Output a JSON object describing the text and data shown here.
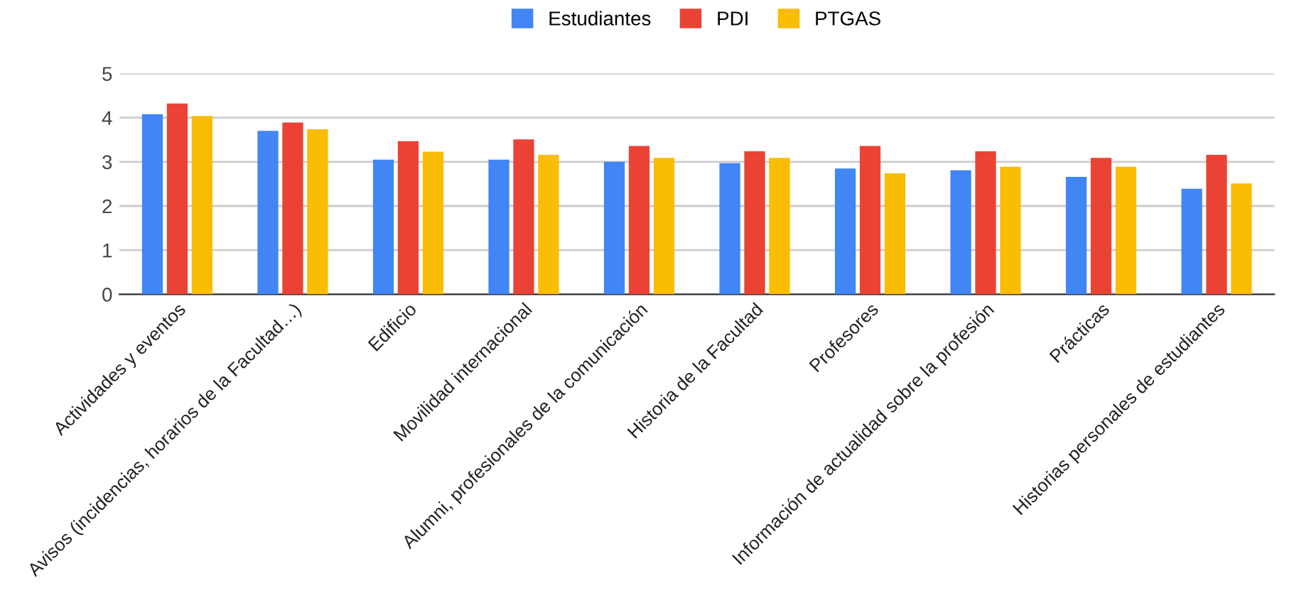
{
  "chart_data": {
    "type": "bar",
    "categories": [
      "Actividades y eventos",
      "Avisos (incidencias, horarios de la Facultad…)",
      "Edificio",
      "Movilidad internacional",
      "Alumni, profesionales de la comunicación",
      "Historia de la Facultad",
      "Profesores",
      "Información de actualidad sobre la profesión",
      "Prácticas",
      "Historias personales de estudiantes"
    ],
    "series": [
      {
        "name": "Estudiantes",
        "color": "#4285f4",
        "values": [
          4.08,
          3.7,
          3.05,
          3.05,
          3.0,
          2.97,
          2.85,
          2.81,
          2.66,
          2.39
        ]
      },
      {
        "name": "PDI",
        "color": "#ea4335",
        "values": [
          4.32,
          3.89,
          3.47,
          3.51,
          3.36,
          3.24,
          3.36,
          3.24,
          3.09,
          3.16
        ]
      },
      {
        "name": "PTGAS",
        "color": "#fbbc04",
        "values": [
          4.04,
          3.74,
          3.23,
          3.16,
          3.09,
          3.09,
          2.74,
          2.89,
          2.89,
          2.51
        ]
      }
    ],
    "ylim": [
      0,
      5
    ],
    "yticks": [
      0,
      1,
      2,
      3,
      4,
      5
    ],
    "grid": "y",
    "legend": "top"
  }
}
